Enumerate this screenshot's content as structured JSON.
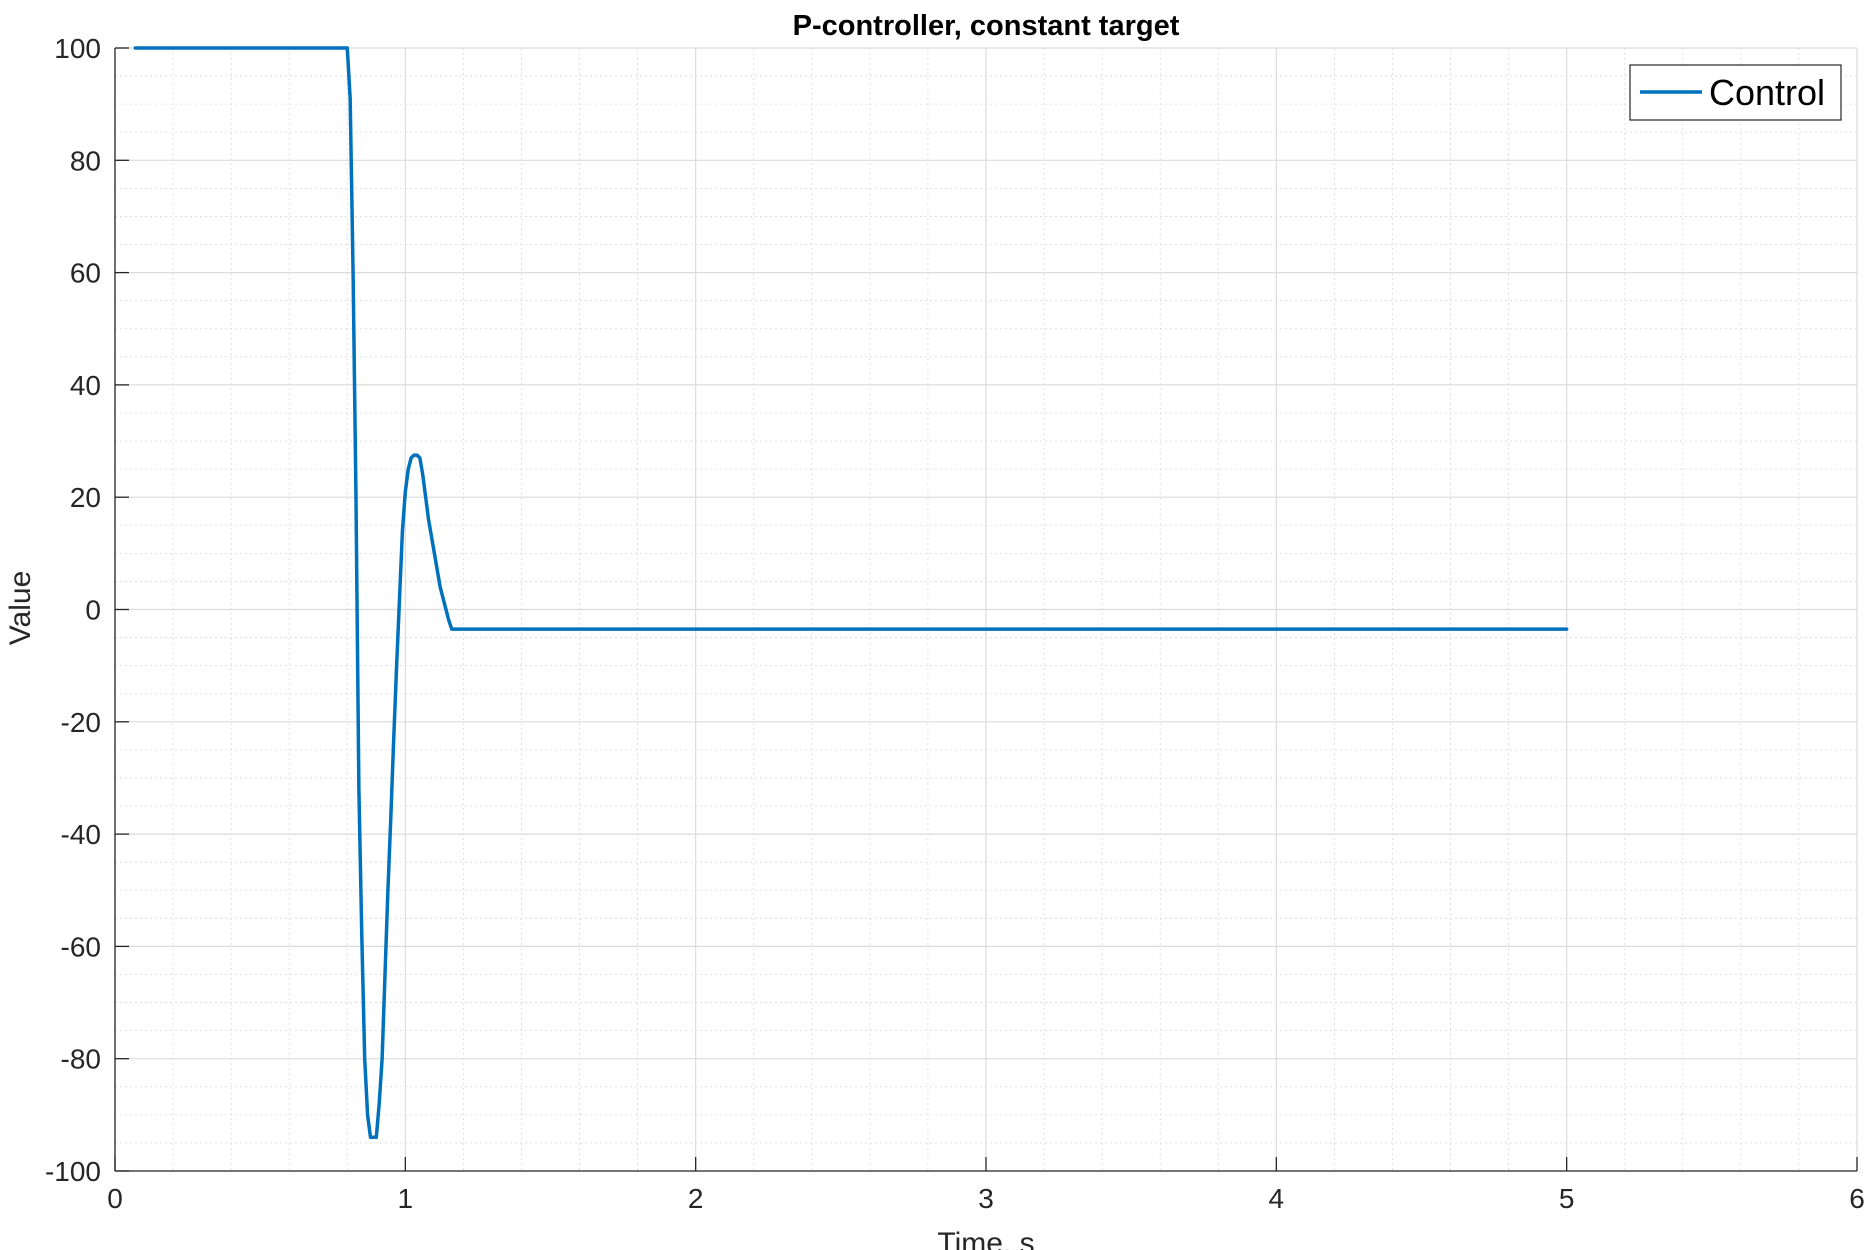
{
  "chart_data": {
    "type": "line",
    "title": "P-controller, constant target",
    "xlabel": "Time, s",
    "ylabel": "Value",
    "xlim": [
      0,
      6
    ],
    "ylim": [
      -100,
      100
    ],
    "xticks": [
      0,
      1,
      2,
      3,
      4,
      5,
      6
    ],
    "yticks": [
      -100,
      -80,
      -60,
      -40,
      -20,
      0,
      20,
      40,
      60,
      80,
      100
    ],
    "grid": true,
    "minor_grid": true,
    "legend_position": "top-right",
    "series": [
      {
        "name": "Control",
        "color": "#0072BD",
        "x": [
          0.07,
          0.1,
          0.2,
          0.3,
          0.4,
          0.5,
          0.6,
          0.7,
          0.8,
          0.81,
          0.82,
          0.83,
          0.84,
          0.85,
          0.86,
          0.87,
          0.88,
          0.89,
          0.9,
          0.91,
          0.92,
          0.93,
          0.94,
          0.95,
          0.96,
          0.97,
          0.98,
          0.99,
          1.0,
          1.01,
          1.02,
          1.03,
          1.04,
          1.05,
          1.06,
          1.07,
          1.08,
          1.09,
          1.1,
          1.11,
          1.12,
          1.13,
          1.14,
          1.15,
          1.16,
          1.17,
          1.18,
          1.19,
          1.2,
          1.5,
          2.0,
          2.5,
          3.0,
          3.5,
          4.0,
          4.5,
          5.0
        ],
        "y": [
          100,
          100,
          100,
          100,
          100,
          100,
          100,
          100,
          100,
          91,
          60,
          20,
          -32,
          -58,
          -80,
          -90,
          -94,
          -94,
          -94,
          -88,
          -80,
          -65,
          -50,
          -37,
          -23,
          -10,
          2,
          14,
          21,
          25,
          27,
          27.5,
          27.5,
          27,
          24,
          20,
          16,
          13,
          10,
          7,
          4,
          2,
          0,
          -2,
          -3.5,
          -3.5,
          -3.5,
          -3.5,
          -3.5,
          -3.5,
          -3.5,
          -3.5,
          -3.5,
          -3.5,
          -3.5,
          -3.5,
          -3.5
        ]
      }
    ]
  }
}
